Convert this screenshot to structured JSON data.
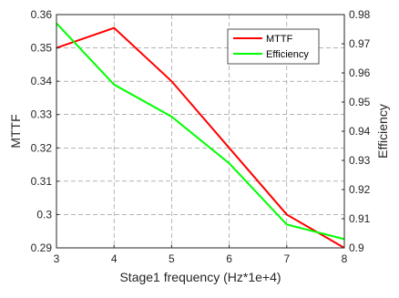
{
  "chart_data": {
    "type": "line",
    "title": "",
    "xlabel": "Stage1 frequency (Hz*1e+4)",
    "ylabel_left": "MTTF",
    "ylabel_right": "Efficiency",
    "x": [
      3,
      4,
      5,
      6,
      7,
      8
    ],
    "xlim": [
      3,
      8
    ],
    "x_ticks": [
      "3",
      "4",
      "5",
      "6",
      "7",
      "8"
    ],
    "ylim_left": [
      0.29,
      0.36
    ],
    "y_ticks_left": [
      "0.29",
      "0.3",
      "0.31",
      "0.32",
      "0.33",
      "0.34",
      "0.35",
      "0.36"
    ],
    "ylim_right": [
      0.9,
      0.98
    ],
    "y_ticks_right": [
      "0.9",
      "0.91",
      "0.92",
      "0.93",
      "0.94",
      "0.95",
      "0.96",
      "0.97",
      "0.98"
    ],
    "grid": true,
    "legend_position": "top-right",
    "series": [
      {
        "name": "MTTF",
        "axis": "left",
        "color": "#ff0000",
        "values": [
          0.35,
          0.356,
          0.34,
          0.32,
          0.3,
          0.29
        ]
      },
      {
        "name": "Efficiency",
        "axis": "right",
        "color": "#00ff00",
        "values": [
          0.977,
          0.956,
          0.945,
          0.929,
          0.908,
          0.903
        ]
      }
    ]
  }
}
